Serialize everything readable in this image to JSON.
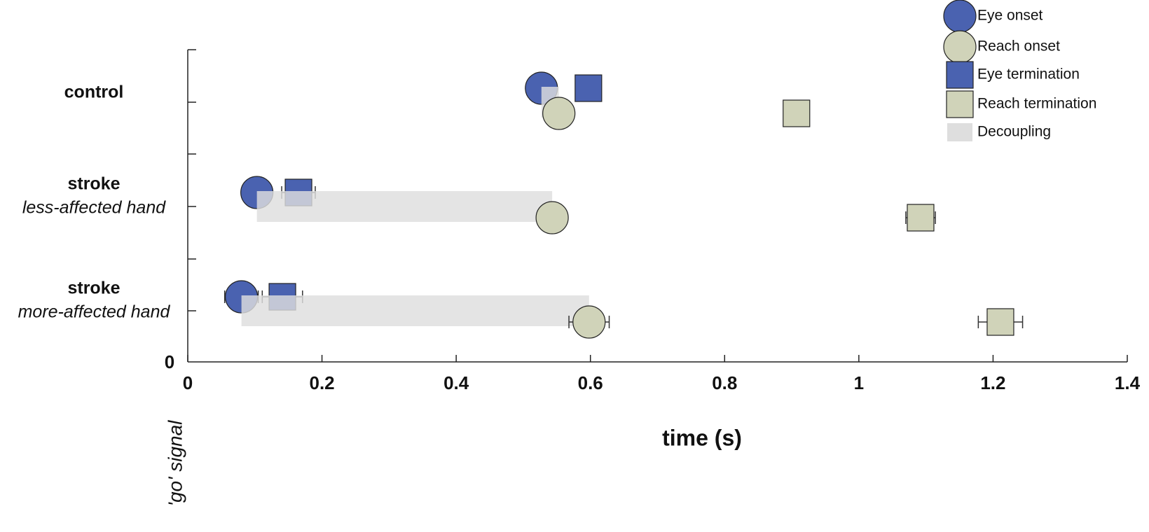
{
  "chart_data": {
    "type": "scatter",
    "xlabel": "time (s)",
    "annotation": "'go' signal",
    "categories": [
      [
        "control"
      ],
      [
        "stroke",
        "less-affected hand"
      ],
      [
        "stroke",
        "more-affected hand"
      ]
    ],
    "xlim": [
      0,
      1.4
    ],
    "xticks": [
      0,
      0.2,
      0.4,
      0.6,
      0.8,
      1,
      1.2,
      1.4
    ],
    "yticks": [
      0
    ],
    "series": [
      {
        "name": "Eye onset",
        "color": "#4a62b0",
        "marker": "circle",
        "row": "top",
        "values": [
          0.527,
          0.103,
          0.08
        ],
        "errors": [
          null,
          0.02,
          0.025
        ]
      },
      {
        "name": "Reach onset",
        "color": "#d0d3b9",
        "marker": "circle",
        "row": "bottom",
        "values": [
          0.553,
          0.543,
          0.598
        ],
        "errors": [
          null,
          0.02,
          0.03
        ]
      },
      {
        "name": "Eye termination",
        "color": "#4a62b0",
        "marker": "square",
        "row": "top",
        "values": [
          0.597,
          0.165,
          0.141
        ],
        "errors": [
          null,
          0.025,
          0.03
        ]
      },
      {
        "name": "Reach termination",
        "color": "#d0d3b9",
        "marker": "square",
        "row": "bottom",
        "values": [
          0.907,
          1.092,
          1.211
        ],
        "errors": [
          null,
          0.022,
          0.033
        ]
      }
    ],
    "decoupling": {
      "name": "Decoupling",
      "color": "#dedede",
      "start": [
        0.527,
        0.103,
        0.08
      ],
      "end": [
        0.553,
        0.543,
        0.598
      ]
    }
  }
}
